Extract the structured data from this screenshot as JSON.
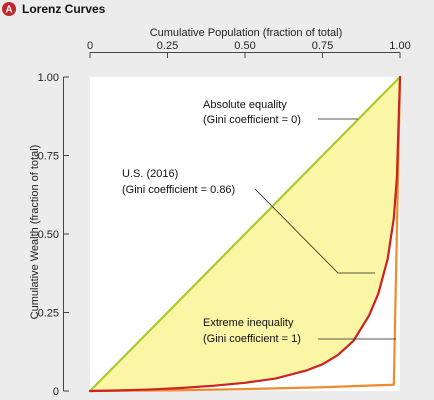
{
  "panel": {
    "badge": "A",
    "title": "Lorenz Curves"
  },
  "chart_data": {
    "type": "line",
    "title": "Lorenz Curves",
    "xlabel": "Cumulative Population (fraction of total)",
    "ylabel": "Cumulative Wealth (fraction of total)",
    "xlim": [
      0,
      1
    ],
    "ylim": [
      0,
      1
    ],
    "x_ticks": [
      {
        "value": 0,
        "label": "0"
      },
      {
        "value": 0.25,
        "label": "0.25"
      },
      {
        "value": 0.5,
        "label": "0.50"
      },
      {
        "value": 0.75,
        "label": "0.75"
      },
      {
        "value": 1,
        "label": "1.00"
      }
    ],
    "y_ticks": [
      {
        "value": 0,
        "label": "0"
      },
      {
        "value": 0.25,
        "label": "0.25"
      },
      {
        "value": 0.5,
        "label": "0.50"
      },
      {
        "value": 0.75,
        "label": "0.75"
      },
      {
        "value": 1,
        "label": "1.00"
      }
    ],
    "grid": false,
    "series": [
      {
        "key": "equality",
        "color": "#a8cc2c",
        "x": [
          0,
          1
        ],
        "y": [
          0,
          1
        ],
        "annotation": [
          "Absolute equality",
          "(Gini coefficient = 0)"
        ]
      },
      {
        "key": "us2016",
        "color": "#cc2222",
        "x": [
          0,
          0.1,
          0.2,
          0.3,
          0.4,
          0.5,
          0.6,
          0.7,
          0.75,
          0.8,
          0.85,
          0.9,
          0.93,
          0.96,
          0.98,
          0.99,
          1.0
        ],
        "y": [
          0,
          0.002,
          0.005,
          0.01,
          0.017,
          0.026,
          0.04,
          0.066,
          0.085,
          0.115,
          0.16,
          0.24,
          0.31,
          0.42,
          0.55,
          0.68,
          1.0
        ],
        "annotation": [
          "U.S. (2016)",
          "(Gini coefficient = 0.86)"
        ]
      },
      {
        "key": "inequality",
        "color": "#f08a2a",
        "x": [
          0,
          0.25,
          0.5,
          0.75,
          0.98,
          1.0
        ],
        "y": [
          0,
          0.002,
          0.006,
          0.012,
          0.02,
          1.0
        ],
        "annotation": [
          "Extreme inequality",
          "(Gini coefficient = 1)"
        ]
      }
    ],
    "fill_between": {
      "upper": "equality",
      "lower": "us2016",
      "color": "#fbf5a6"
    }
  }
}
